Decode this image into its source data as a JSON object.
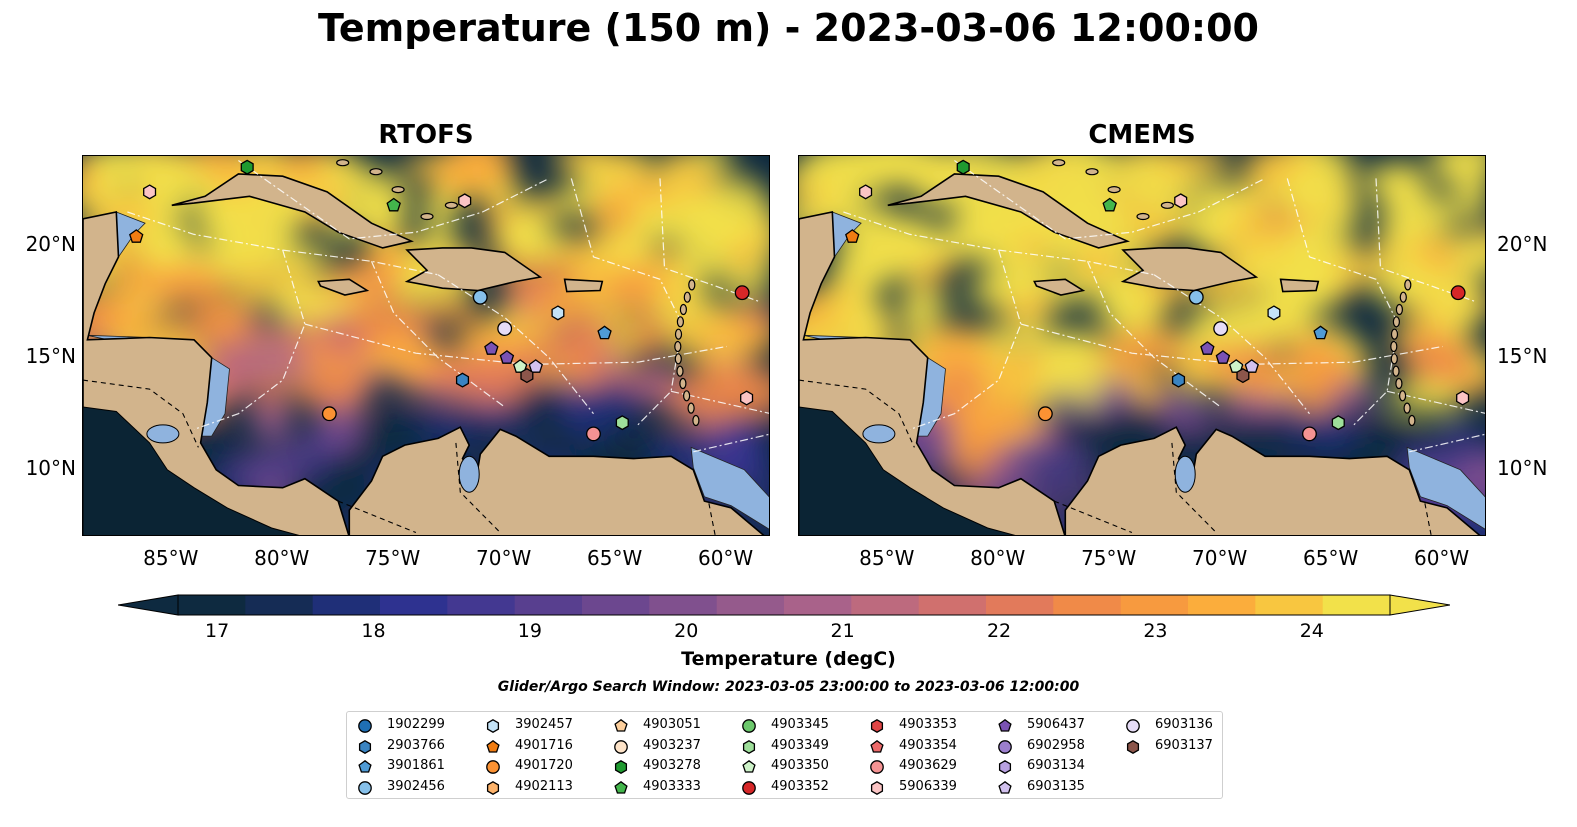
{
  "title": "Temperature (150 m) - 2023-03-06 12:00:00",
  "panels": [
    {
      "title": "RTOFS",
      "id": "rtofs"
    },
    {
      "title": "CMEMS",
      "id": "cmems"
    }
  ],
  "lat_ticks": [
    "10°N",
    "15°N",
    "20°N"
  ],
  "lon_ticks": [
    "85°W",
    "80°W",
    "75°W",
    "70°W",
    "65°W",
    "60°W"
  ],
  "colorbar": {
    "label": "Temperature (degC)",
    "ticks": [
      "17",
      "18",
      "19",
      "20",
      "21",
      "22",
      "23",
      "24"
    ],
    "min": 16.75,
    "max": 24.5,
    "colors": [
      "#0e2a40",
      "#152c55",
      "#1f2f78",
      "#2e3290",
      "#433891",
      "#583f8f",
      "#6c478f",
      "#80508e",
      "#955a8c",
      "#a9628a",
      "#bd6a7e",
      "#d0706e",
      "#e27a5b",
      "#f08a48",
      "#f79a3f",
      "#fbad3c",
      "#f8c640",
      "#f2e14a"
    ]
  },
  "search_window": "Glider/Argo Search Window: 2023-03-05 23:00:00 to 2023-03-06 12:00:00",
  "legend": [
    {
      "id": "1902299",
      "marker": "circle",
      "color": "#1f6fb4"
    },
    {
      "id": "2903766",
      "marker": "hexagon",
      "color": "#3a84c2"
    },
    {
      "id": "3901861",
      "marker": "pentagon",
      "color": "#4f9bd6"
    },
    {
      "id": "3902456",
      "marker": "circle",
      "color": "#86c0ea"
    },
    {
      "id": "3902457",
      "marker": "hexagon",
      "color": "#c4e3f7"
    },
    {
      "id": "4901716",
      "marker": "pentagon",
      "color": "#f07c12"
    },
    {
      "id": "4901720",
      "marker": "circle",
      "color": "#fb9233"
    },
    {
      "id": "4902113",
      "marker": "hexagon",
      "color": "#fdb36b"
    },
    {
      "id": "4903051",
      "marker": "pentagon",
      "color": "#fdcf9c"
    },
    {
      "id": "4903237",
      "marker": "circle",
      "color": "#fde3c8"
    },
    {
      "id": "4903278",
      "marker": "hexagon",
      "color": "#1f9a30"
    },
    {
      "id": "4903333",
      "marker": "pentagon",
      "color": "#43b64c"
    },
    {
      "id": "4903345",
      "marker": "circle",
      "color": "#6cc86c"
    },
    {
      "id": "4903349",
      "marker": "hexagon",
      "color": "#9edf9a"
    },
    {
      "id": "4903350",
      "marker": "pentagon",
      "color": "#cdf2c8"
    },
    {
      "id": "4903352",
      "marker": "circle",
      "color": "#d62728"
    },
    {
      "id": "4903353",
      "marker": "hexagon",
      "color": "#e04545"
    },
    {
      "id": "4903354",
      "marker": "pentagon",
      "color": "#ec6a6a"
    },
    {
      "id": "4903629",
      "marker": "circle",
      "color": "#f59393"
    },
    {
      "id": "5906339",
      "marker": "hexagon",
      "color": "#fbc4c4"
    },
    {
      "id": "5906437",
      "marker": "pentagon",
      "color": "#7a52b3"
    },
    {
      "id": "6902958",
      "marker": "circle",
      "color": "#9c7fce"
    },
    {
      "id": "6903134",
      "marker": "hexagon",
      "color": "#b8a1e0"
    },
    {
      "id": "6903135",
      "marker": "pentagon",
      "color": "#d2c1ee"
    },
    {
      "id": "6903136",
      "marker": "circle",
      "color": "#e6dcf6"
    },
    {
      "id": "6903137",
      "marker": "hexagon",
      "color": "#8c564b"
    }
  ],
  "floats": [
    {
      "id": "4903278",
      "lon": -81.6,
      "lat": 23.5
    },
    {
      "id": "5906339",
      "lon": -86.0,
      "lat": 22.4
    },
    {
      "id": "4901716",
      "lon": -86.6,
      "lat": 20.4
    },
    {
      "id": "4903333",
      "lon": -75.0,
      "lat": 21.8
    },
    {
      "id": "5906339",
      "lon": -71.8,
      "lat": 22.0
    },
    {
      "id": "3902456",
      "lon": -71.1,
      "lat": 17.7
    },
    {
      "id": "4903352",
      "lon": -59.3,
      "lat": 17.9
    },
    {
      "id": "3902457",
      "lon": -67.6,
      "lat": 17.0
    },
    {
      "id": "6903136",
      "lon": -70.0,
      "lat": 16.3
    },
    {
      "id": "3901861",
      "lon": -65.5,
      "lat": 16.1
    },
    {
      "id": "5906437",
      "lon": -70.6,
      "lat": 15.4
    },
    {
      "id": "5906437",
      "lon": -69.9,
      "lat": 15.0
    },
    {
      "id": "4903350",
      "lon": -69.3,
      "lat": 14.6
    },
    {
      "id": "6903135",
      "lon": -68.6,
      "lat": 14.6
    },
    {
      "id": "6903137",
      "lon": -69.0,
      "lat": 14.2
    },
    {
      "id": "2903766",
      "lon": -71.9,
      "lat": 14.0
    },
    {
      "id": "4901720",
      "lon": -77.9,
      "lat": 12.5
    },
    {
      "id": "4903349",
      "lon": -64.7,
      "lat": 12.1
    },
    {
      "id": "4903629",
      "lon": -66.0,
      "lat": 11.6
    },
    {
      "id": "5906339",
      "lon": -59.1,
      "lat": 13.2
    }
  ],
  "map_extent": {
    "lon": [
      -89,
      -58
    ],
    "lat": [
      7,
      24
    ]
  }
}
